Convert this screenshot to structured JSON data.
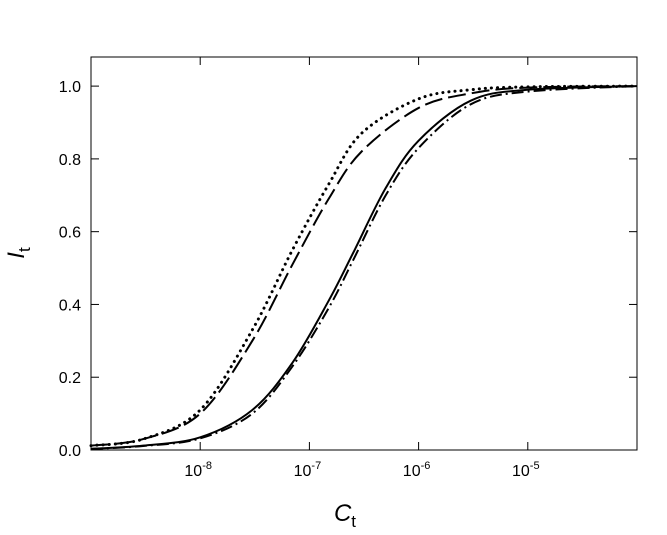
{
  "chart_data": {
    "type": "line",
    "x_scale": "log",
    "xlabel": "Ct",
    "xlabel_main": "C",
    "xlabel_sub": "t",
    "ylabel": "It",
    "ylabel_main": "I",
    "ylabel_sub": "t",
    "xlim": [
      1e-09,
      0.0001
    ],
    "ylim": [
      0.0,
      1.08
    ],
    "x_ticks": [
      {
        "value": 1e-08,
        "base": "10",
        "exp": "-8"
      },
      {
        "value": 1e-07,
        "base": "10",
        "exp": "-7"
      },
      {
        "value": 1e-06,
        "base": "10",
        "exp": "-6"
      },
      {
        "value": 1e-05,
        "base": "10",
        "exp": "-5"
      }
    ],
    "y_ticks": [
      {
        "value": 0.0,
        "label": "0.0"
      },
      {
        "value": 0.2,
        "label": "0.2"
      },
      {
        "value": 0.4,
        "label": "0.4"
      },
      {
        "value": 0.6,
        "label": "0.6"
      },
      {
        "value": 0.8,
        "label": "0.8"
      },
      {
        "value": 1.0,
        "label": "1.0"
      }
    ],
    "grid": false,
    "series": [
      {
        "style": "dotted",
        "x": [
          1e-09,
          3e-09,
          1e-08,
          3e-08,
          7e-08,
          1.5e-07,
          3e-07,
          1e-06,
          3e-06,
          1e-05,
          0.0001
        ],
        "y": [
          0.012,
          0.03,
          0.11,
          0.33,
          0.55,
          0.73,
          0.87,
          0.965,
          0.99,
          0.998,
          1.0
        ]
      },
      {
        "style": "dashed",
        "x": [
          1e-09,
          3e-09,
          1e-08,
          3e-08,
          7e-08,
          1.5e-07,
          3e-07,
          1e-06,
          3e-06,
          1e-05,
          0.0001
        ],
        "y": [
          0.012,
          0.03,
          0.1,
          0.3,
          0.51,
          0.69,
          0.82,
          0.94,
          0.98,
          0.996,
          1.0
        ]
      },
      {
        "style": "solid",
        "x": [
          1e-09,
          3e-09,
          1e-08,
          3e-08,
          7e-08,
          1.5e-07,
          2.5e-07,
          5e-07,
          1e-06,
          3e-06,
          1e-05,
          0.0001
        ],
        "y": [
          0.003,
          0.012,
          0.035,
          0.11,
          0.24,
          0.41,
          0.54,
          0.72,
          0.85,
          0.96,
          0.99,
          1.0
        ]
      },
      {
        "style": "dashdot",
        "x": [
          1e-09,
          3e-09,
          1e-08,
          3e-08,
          7e-08,
          1.5e-07,
          2.5e-07,
          5e-07,
          1e-06,
          3e-06,
          1e-05,
          0.0001
        ],
        "y": [
          0.003,
          0.011,
          0.032,
          0.1,
          0.23,
          0.39,
          0.52,
          0.7,
          0.83,
          0.95,
          0.985,
          1.0
        ]
      }
    ]
  }
}
